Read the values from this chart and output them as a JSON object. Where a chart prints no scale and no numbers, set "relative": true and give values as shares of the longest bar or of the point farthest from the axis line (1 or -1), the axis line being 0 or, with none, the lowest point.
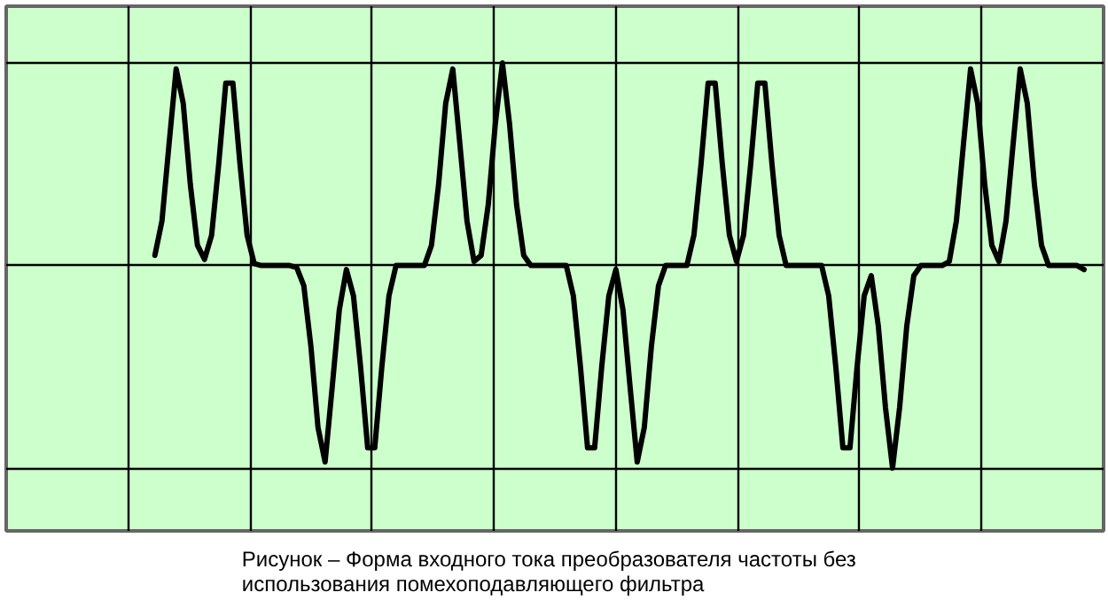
{
  "chart_data": {
    "type": "line",
    "relative": true,
    "grid": true,
    "categories": [
      null,
      null,
      null,
      null,
      null,
      null,
      null,
      null,
      null,
      null,
      null,
      null,
      null,
      null,
      null,
      null,
      null,
      null,
      null,
      null,
      null,
      null,
      null,
      null,
      null,
      null,
      null,
      null,
      null,
      null,
      null,
      null,
      null,
      null,
      null,
      null,
      null,
      null,
      null,
      null,
      null,
      null,
      null,
      null,
      null,
      null,
      null,
      null,
      null,
      null,
      null,
      null,
      null,
      null,
      null,
      null,
      null,
      null,
      null,
      null,
      null,
      null,
      null,
      null,
      null,
      null,
      null,
      null,
      null,
      null,
      null,
      null,
      null,
      null,
      null,
      null,
      null,
      null,
      null,
      null,
      null,
      null,
      null,
      null,
      null,
      null,
      null,
      null,
      null,
      null,
      null,
      null,
      null,
      null,
      null,
      null,
      null,
      null,
      null,
      null,
      null,
      null,
      null,
      null,
      null,
      null,
      null,
      null,
      null,
      null,
      null,
      null,
      null,
      null,
      null,
      null,
      null,
      null,
      null,
      null,
      null,
      null,
      null,
      null,
      null,
      null,
      null,
      null,
      null,
      null,
      null,
      null
    ],
    "series": [
      {
        "color": "#000000",
        "values": [
          0.05,
          0.22,
          0.6,
          0.97,
          0.8,
          0.4,
          0.1,
          0.03,
          0.15,
          0.5,
          0.9,
          0.9,
          0.5,
          0.15,
          0.01,
          0,
          0,
          0,
          0,
          0,
          -0.01,
          -0.1,
          -0.4,
          -0.8,
          -0.97,
          -0.6,
          -0.22,
          -0.02,
          -0.15,
          -0.5,
          -0.9,
          -0.9,
          -0.5,
          -0.15,
          0,
          0,
          0,
          0,
          0,
          0.1,
          0.4,
          0.8,
          0.97,
          0.6,
          0.22,
          0.02,
          0.05,
          0.3,
          0.7,
          1,
          0.7,
          0.3,
          0.05,
          0,
          0,
          0,
          0,
          0,
          0,
          -0.15,
          -0.5,
          -0.9,
          -0.9,
          -0.5,
          -0.15,
          -0.02,
          -0.22,
          -0.6,
          -0.97,
          -0.8,
          -0.4,
          -0.1,
          0,
          0,
          0,
          0,
          0.15,
          0.5,
          0.9,
          0.9,
          0.5,
          0.15,
          0.02,
          0.15,
          0.5,
          0.9,
          0.9,
          0.5,
          0.15,
          0,
          0,
          0,
          0,
          0,
          0,
          -0.15,
          -0.5,
          -0.9,
          -0.9,
          -0.5,
          -0.15,
          -0.05,
          -0.3,
          -0.7,
          -1,
          -0.7,
          -0.3,
          -0.05,
          0,
          0,
          0,
          0,
          0.02,
          0.22,
          0.6,
          0.97,
          0.8,
          0.4,
          0.1,
          0.02,
          0.22,
          0.6,
          0.97,
          0.8,
          0.4,
          0.1,
          0,
          0,
          0,
          0,
          0,
          -0.02
        ]
      }
    ],
    "annotations": [
      "Рисунок –   Форма входного тока преобразователя частоты без\nиспользования помехоподавляющего фильтра"
    ]
  }
}
